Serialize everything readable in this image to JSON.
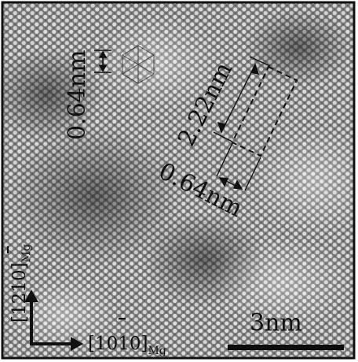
{
  "image": {
    "description_colors": {
      "background": "#8a8a8a",
      "atom_light": "#e6e6e6",
      "atom_dark": "#4a4a4a",
      "ink": "#0d0d0d"
    }
  },
  "annotations": {
    "spacing_top": "0.64nm",
    "spacing_long": "2.22nm",
    "spacing_rotated": "0.64nm",
    "scale_bar": "3nm"
  },
  "axes": {
    "vertical_dir": "[1210]",
    "vertical_sub": "Mg",
    "horizontal_dir": "[1010]",
    "horizontal_sub": "Mg"
  }
}
